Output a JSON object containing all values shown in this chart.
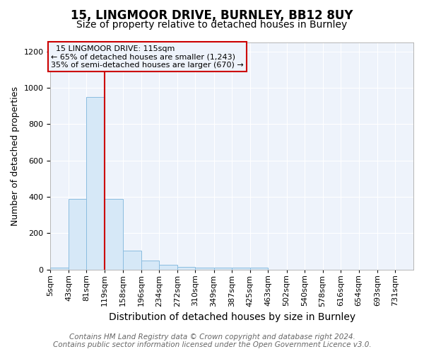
{
  "title1": "15, LINGMOOR DRIVE, BURNLEY, BB12 8UY",
  "title2": "Size of property relative to detached houses in Burnley",
  "xlabel": "Distribution of detached houses by size in Burnley",
  "ylabel": "Number of detached properties",
  "footer1": "Contains HM Land Registry data © Crown copyright and database right 2024.",
  "footer2": "Contains public sector information licensed under the Open Government Licence v3.0.",
  "annotation_line1": "15 LINGMOOR DRIVE: 115sqm",
  "annotation_line2": "← 65% of detached houses are smaller (1,243)",
  "annotation_line3": "35% of semi-detached houses are larger (670) →",
  "bar_edges": [
    5,
    43,
    81,
    119,
    158,
    196,
    234,
    272,
    310,
    349,
    387,
    425,
    463,
    502,
    540,
    578,
    616,
    654,
    693,
    731,
    769
  ],
  "bar_heights": [
    10,
    390,
    950,
    390,
    105,
    50,
    25,
    15,
    10,
    10,
    10,
    10,
    0,
    0,
    0,
    0,
    0,
    0,
    0,
    0
  ],
  "bar_color": "#d6e8f7",
  "bar_edge_color": "#8bbde0",
  "property_line_x": 119,
  "property_line_color": "#cc0000",
  "annotation_box_color": "#cc0000",
  "ylim": [
    0,
    1250
  ],
  "yticks": [
    0,
    200,
    400,
    600,
    800,
    1000,
    1200
  ],
  "background_color": "#ffffff",
  "plot_bg_color": "#eef3fb",
  "grid_color": "#ffffff",
  "title1_fontsize": 12,
  "title2_fontsize": 10,
  "xlabel_fontsize": 10,
  "ylabel_fontsize": 9,
  "tick_fontsize": 8,
  "annot_fontsize": 8,
  "footer_fontsize": 7.5
}
